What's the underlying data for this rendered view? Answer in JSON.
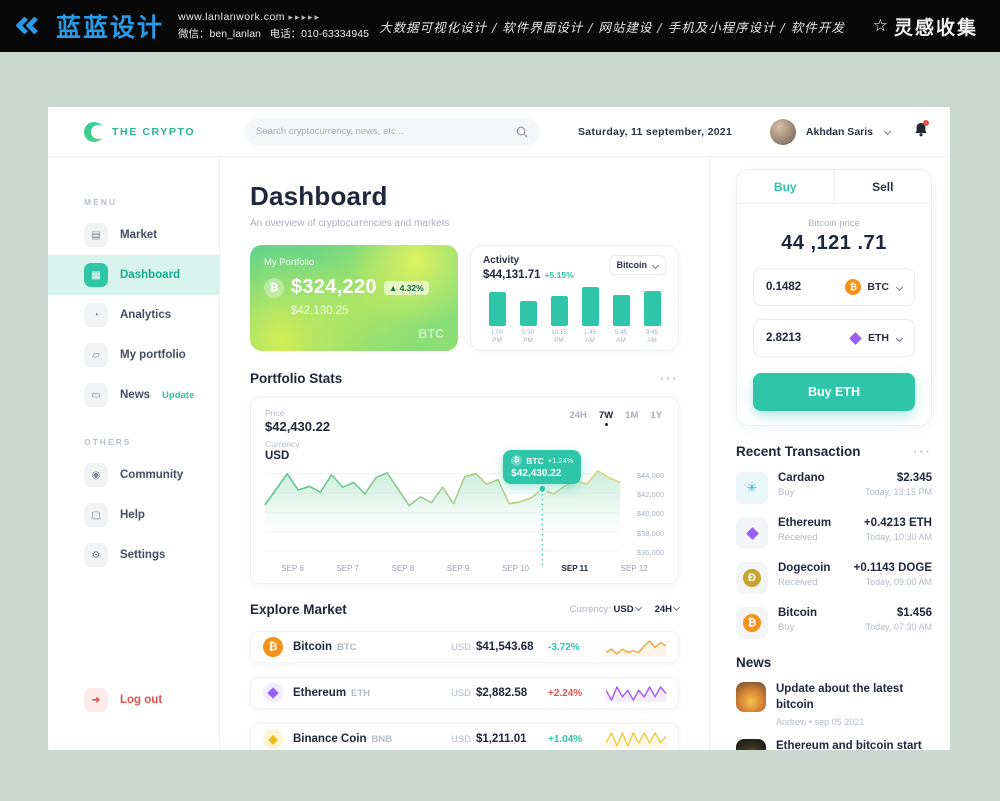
{
  "banner": {
    "brand": "蓝蓝设计",
    "website": "www.lanlanwork.com",
    "arrows": "▸▸▸▸▸",
    "wechat": "微信：ben_lanlan",
    "phone": "电话：010-63334945",
    "services": "大数据可视化设计 / 软件界面设计 / 网站建设 / 手机及小程序设计 / 软件开发",
    "collect": "灵感收集"
  },
  "app_header": {
    "brand": "THE CRYPTO",
    "search_placeholder": "Search cryptocurrency, news, etc...",
    "date": "Saturday, 11 september, 2021",
    "user_name": "Akhdan Saris"
  },
  "sidebar": {
    "menu_label": "MENU",
    "others_label": "OTHERS",
    "menu": [
      {
        "label": "Market"
      },
      {
        "label": "Dashboard"
      },
      {
        "label": "Analytics"
      },
      {
        "label": "My portfolio"
      },
      {
        "label": "News",
        "badge": "Update"
      }
    ],
    "others": [
      {
        "label": "Community"
      },
      {
        "label": "Help"
      },
      {
        "label": "Settings"
      }
    ],
    "logout_label": "Log out"
  },
  "main": {
    "title": "Dashboard",
    "subtitle": "An overview of cryptocurrencies and markets",
    "portfolio_card": {
      "label": "My Portfolio",
      "amount": "$324,220",
      "change": "4.32%",
      "secondary": "$42,130.25",
      "coin": "BTC",
      "coin_symbol": "₿"
    },
    "activity_card": {
      "label": "Activity",
      "amount": "$44,131.71",
      "change": "+5.15%",
      "selector": "Bitcoin"
    },
    "stats": {
      "heading": "Portfolio Stats",
      "menu_dots": "···",
      "price_label": "Price",
      "price": "$42,430.22",
      "currency_label": "Currency",
      "currency": "USD",
      "ranges": [
        "24H",
        "7W",
        "1M",
        "1Y"
      ],
      "active_range": "7W",
      "tooltip": {
        "coin": "BTC",
        "coin_symbol": "₿",
        "change": "+1.24%",
        "value": "$42,430.22"
      }
    },
    "explore": {
      "heading": "Explore Market",
      "currency_label": "Currency:",
      "currency_value": "USD",
      "range_value": "24H",
      "rows": [
        {
          "name": "Bitcoin",
          "ticker": "BTC",
          "unit": "USD",
          "price": "$41,543.68",
          "change": "-3.72%",
          "change_color": "#2ec5a8",
          "icon_bg": "#f2921a",
          "symbol": "₿"
        },
        {
          "name": "Ethereum",
          "ticker": "ETH",
          "unit": "USD",
          "price": "$2,882.58",
          "change": "+2.24%",
          "change_color": "#e2504c",
          "icon_bg": "#f3ecfd",
          "symbol": ""
        },
        {
          "name": "Binance Coin",
          "ticker": "BNB",
          "unit": "USD",
          "price": "$1,211.01",
          "change": "+1.04%",
          "change_color": "#2ec5a8",
          "icon_bg": "#fdf4d4",
          "symbol": "◈"
        }
      ]
    }
  },
  "trade": {
    "tab_buy": "Buy",
    "tab_sell": "Sell",
    "price_label": "Bitcoin price",
    "price": "44 ,121 .71",
    "row_from": {
      "amount": "0.1482",
      "coin": "BTC",
      "symbol": "₿"
    },
    "row_to": {
      "amount": "2.8213",
      "coin": "ETH"
    },
    "button": "Buy ETH"
  },
  "transactions": {
    "heading": "Recent Transaction",
    "menu_dots": "···",
    "items": [
      {
        "name": "Cardano",
        "type": "Buy",
        "amount": "$2.345",
        "time": "Today, 13:15 PM",
        "symbol": "✳",
        "symbol_color": "#35b8cf",
        "tile_bg": "#eaf7f9"
      },
      {
        "name": "Ethereum",
        "type": "Received",
        "amount": "+0.4213 ETH",
        "time": "Today, 10:30 AM",
        "symbol": "",
        "symbol_color": "#9a5cf5",
        "tile_bg": "#f3f5f7"
      },
      {
        "name": "Dogecoin",
        "type": "Received",
        "amount": "+0.1143 DOGE",
        "time": "Today, 09:00 AM",
        "symbol": "Ð",
        "symbol_color": "#c9a42c",
        "tile_bg": "#f3f5f7"
      },
      {
        "name": "Bitcoin",
        "type": "Buy",
        "amount": "$1.456",
        "time": "Today, 07:30 AM",
        "symbol": "₿",
        "symbol_color": "#f2921a",
        "tile_bg": "#f3f5f7"
      }
    ]
  },
  "news": {
    "heading": "News",
    "items": [
      {
        "title": "Update about the latest bitcoin",
        "meta": "Andrew  •  sep 05 2021"
      },
      {
        "title": "Ethereum and bitcoin start to rise rapidly",
        "meta": ""
      }
    ]
  },
  "chart_data": [
    {
      "id": "activity",
      "type": "bar",
      "title": "Activity",
      "categories": [
        "1:00 PM",
        "5:30 PM",
        "10:15 PM",
        "1:45 AM",
        "5:45 AM",
        "9:45 AM"
      ],
      "values": [
        82,
        60,
        72,
        95,
        74,
        84
      ],
      "ylabel": "relative height %",
      "color": "#2ec5a8"
    },
    {
      "id": "portfolio",
      "type": "area",
      "title": "Portfolio Stats (BTC price, USD)",
      "xlabels": [
        "SEP 6",
        "SEP 7",
        "SEP 8",
        "SEP 9",
        "SEP 10",
        "SEP 11",
        "SEP 12"
      ],
      "values": [
        40800,
        42400,
        44000,
        42300,
        42700,
        42100,
        43900,
        42600,
        43100,
        41900,
        43600,
        44100,
        42400,
        40700,
        41600,
        41000,
        42600,
        40900,
        43700,
        44000,
        42900,
        43400,
        40900,
        41100,
        41500,
        42430,
        41900,
        42700,
        43300,
        42900,
        44300,
        43600,
        43100
      ],
      "ylim": [
        35500,
        45000
      ],
      "yticks": [
        {
          "label": "$44,000",
          "value": 44000
        },
        {
          "label": "$42,000",
          "value": 42000
        },
        {
          "label": "$40,000",
          "value": 40000
        },
        {
          "label": "$38,000",
          "value": 38000
        },
        {
          "label": "$36,000",
          "value": 36000
        }
      ],
      "marker": {
        "index": 25,
        "value": 42430.22,
        "coin": "BTC",
        "change": "+1.24%",
        "label": "$42,430.22"
      },
      "grid": true,
      "line_color_start": "#4cc28e",
      "line_color_end": "#e6d478",
      "fill_color": "#9fdfc0"
    },
    {
      "id": "spark-0",
      "type": "line",
      "series_name": "Bitcoin 24H",
      "values": [
        4,
        6,
        3,
        6,
        4,
        5,
        4,
        8,
        11,
        7,
        10,
        8
      ],
      "color": "#f0a23c"
    },
    {
      "id": "spark-1",
      "type": "line",
      "series_name": "Ethereum 24H",
      "values": [
        7,
        4,
        8,
        5,
        7,
        4,
        7,
        5,
        8,
        5,
        8,
        6
      ],
      "color": "#a259f7"
    },
    {
      "id": "spark-2",
      "type": "line",
      "series_name": "Binance Coin 24H",
      "values": [
        5,
        8,
        4,
        8,
        4,
        8,
        5,
        8,
        5,
        8,
        5,
        7
      ],
      "color": "#ecc93e"
    }
  ]
}
